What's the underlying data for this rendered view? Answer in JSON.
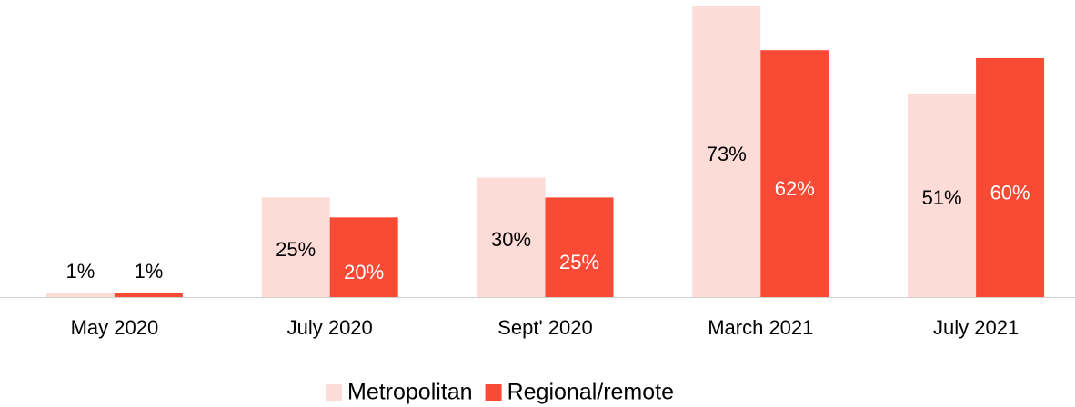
{
  "chart_data": {
    "type": "bar",
    "categories": [
      "May 2020",
      "July 2020",
      "Sept' 2020",
      "March 2021",
      "July 2021"
    ],
    "series": [
      {
        "name": "Metropolitan",
        "color": "#fddbd6",
        "values": [
          1,
          25,
          30,
          73,
          51
        ],
        "value_labels": [
          "1%",
          "25%",
          "30%",
          "73%",
          "51%"
        ]
      },
      {
        "name": "Regional/remote",
        "color": "#f84a35",
        "values": [
          1,
          20,
          25,
          62,
          60
        ],
        "value_labels": [
          "1%",
          "20%",
          "25%",
          "62%",
          "60%"
        ]
      }
    ],
    "ylim": [
      0,
      73
    ],
    "legend": "bottom"
  }
}
